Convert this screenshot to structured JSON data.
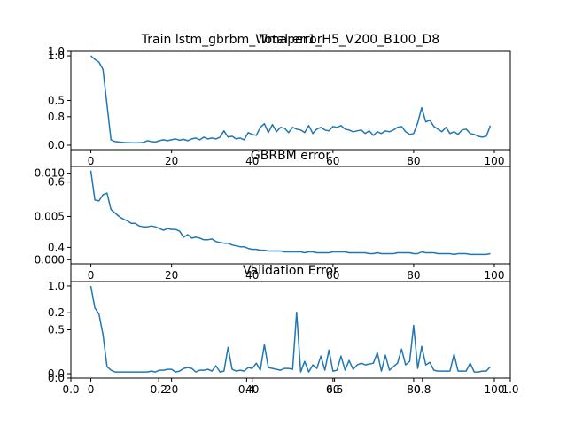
{
  "figure": {
    "suptitle": "Train lstm_gbrbm_Wmaper1_H5_V200_B100_D8",
    "overlay_title": "Total error",
    "overlay_x_ticks": [
      "0.0",
      "0.2",
      "0.4",
      "0.6",
      "0.8",
      "1.0"
    ],
    "overlay_y_ticks": [
      "0.0",
      "0.2",
      "0.4",
      "0.6",
      "0.8",
      "1.0"
    ]
  },
  "chart_data": [
    {
      "type": "line",
      "title": "",
      "color": "#1f77b4",
      "xlim": [
        -4.95,
        103.95
      ],
      "ylim": [
        -0.05,
        1.05
      ],
      "x_ticks": [
        0,
        20,
        40,
        60,
        80,
        100
      ],
      "y_ticks": [
        0.0,
        0.5,
        1.0
      ],
      "x": [
        0,
        1,
        2,
        3,
        4,
        5,
        6,
        7,
        8,
        9,
        10,
        11,
        12,
        13,
        14,
        15,
        16,
        17,
        18,
        19,
        20,
        21,
        22,
        23,
        24,
        25,
        26,
        27,
        28,
        29,
        30,
        31,
        32,
        33,
        34,
        35,
        36,
        37,
        38,
        39,
        40,
        41,
        42,
        43,
        44,
        45,
        46,
        47,
        48,
        49,
        50,
        51,
        52,
        53,
        54,
        55,
        56,
        57,
        58,
        59,
        60,
        61,
        62,
        63,
        64,
        65,
        66,
        67,
        68,
        69,
        70,
        71,
        72,
        73,
        74,
        75,
        76,
        77,
        78,
        79,
        80,
        81,
        82,
        83,
        84,
        85,
        86,
        87,
        88,
        89,
        90,
        91,
        92,
        93,
        94,
        95,
        96,
        97,
        98,
        99
      ],
      "values": [
        1.0,
        0.96,
        0.93,
        0.85,
        0.45,
        0.06,
        0.04,
        0.035,
        0.03,
        0.028,
        0.026,
        0.025,
        0.027,
        0.03,
        0.05,
        0.04,
        0.035,
        0.05,
        0.06,
        0.05,
        0.06,
        0.07,
        0.055,
        0.065,
        0.05,
        0.07,
        0.08,
        0.06,
        0.09,
        0.07,
        0.08,
        0.07,
        0.09,
        0.16,
        0.09,
        0.1,
        0.07,
        0.08,
        0.06,
        0.14,
        0.12,
        0.11,
        0.2,
        0.24,
        0.14,
        0.23,
        0.15,
        0.2,
        0.19,
        0.14,
        0.2,
        0.18,
        0.17,
        0.14,
        0.22,
        0.13,
        0.18,
        0.2,
        0.17,
        0.16,
        0.21,
        0.2,
        0.22,
        0.18,
        0.17,
        0.15,
        0.16,
        0.17,
        0.13,
        0.16,
        0.11,
        0.15,
        0.13,
        0.16,
        0.15,
        0.17,
        0.2,
        0.21,
        0.15,
        0.12,
        0.13,
        0.25,
        0.42,
        0.26,
        0.28,
        0.21,
        0.18,
        0.15,
        0.2,
        0.13,
        0.15,
        0.12,
        0.17,
        0.18,
        0.13,
        0.12,
        0.1,
        0.09,
        0.1,
        0.22
      ]
    },
    {
      "type": "line",
      "title": "GBRBM error",
      "color": "#1f77b4",
      "xlim": [
        -4.95,
        103.95
      ],
      "ylim": [
        -0.00048,
        0.01078
      ],
      "x_ticks": [
        0,
        20,
        40,
        60,
        80,
        100
      ],
      "y_ticks": [
        "0.000",
        "0.005",
        "0.010"
      ],
      "y_tick_values": [
        0.0,
        0.005,
        0.01
      ],
      "x": [
        0,
        1,
        2,
        3,
        4,
        5,
        6,
        7,
        8,
        9,
        10,
        11,
        12,
        13,
        14,
        15,
        16,
        17,
        18,
        19,
        20,
        21,
        22,
        23,
        24,
        25,
        26,
        27,
        28,
        29,
        30,
        31,
        32,
        33,
        34,
        35,
        36,
        37,
        38,
        39,
        40,
        41,
        42,
        43,
        44,
        45,
        46,
        47,
        48,
        49,
        50,
        51,
        52,
        53,
        54,
        55,
        56,
        57,
        58,
        59,
        60,
        61,
        62,
        63,
        64,
        65,
        66,
        67,
        68,
        69,
        70,
        71,
        72,
        73,
        74,
        75,
        76,
        77,
        78,
        79,
        80,
        81,
        82,
        83,
        84,
        85,
        86,
        87,
        88,
        89,
        90,
        91,
        92,
        93,
        94,
        95,
        96,
        97,
        98,
        99
      ],
      "values": [
        0.0103,
        0.0069,
        0.0068,
        0.0075,
        0.0077,
        0.0058,
        0.0054,
        0.005,
        0.0047,
        0.0045,
        0.0042,
        0.0042,
        0.0039,
        0.0038,
        0.0038,
        0.0039,
        0.0038,
        0.0036,
        0.0034,
        0.0036,
        0.0035,
        0.0035,
        0.0033,
        0.0026,
        0.0029,
        0.0025,
        0.0026,
        0.0025,
        0.0023,
        0.0023,
        0.0024,
        0.0021,
        0.002,
        0.0019,
        0.0019,
        0.0017,
        0.0016,
        0.0015,
        0.0015,
        0.0013,
        0.0012,
        0.0012,
        0.0011,
        0.0011,
        0.001,
        0.001,
        0.001,
        0.001,
        0.0009,
        0.0009,
        0.0009,
        0.0009,
        0.0009,
        0.0008,
        0.0009,
        0.0009,
        0.0008,
        0.0008,
        0.0008,
        0.0008,
        0.0009,
        0.0009,
        0.0009,
        0.0009,
        0.0008,
        0.0008,
        0.0008,
        0.0008,
        0.0008,
        0.0007,
        0.0007,
        0.0008,
        0.0007,
        0.0007,
        0.0007,
        0.0007,
        0.0008,
        0.0008,
        0.0008,
        0.0008,
        0.0007,
        0.0007,
        0.0009,
        0.0008,
        0.0008,
        0.0008,
        0.0007,
        0.0007,
        0.0007,
        0.0007,
        0.0006,
        0.0007,
        0.0007,
        0.0007,
        0.0006,
        0.0006,
        0.0006,
        0.0006,
        0.0006,
        0.0007
      ]
    },
    {
      "type": "line",
      "title": "Validation Error",
      "color": "#1f77b4",
      "xlim": [
        -4.95,
        103.95
      ],
      "ylim": [
        -0.05,
        1.05
      ],
      "x_ticks": [
        0,
        20,
        40,
        60,
        80,
        100
      ],
      "y_ticks": [
        0.0,
        0.5,
        1.0
      ],
      "x": [
        0,
        1,
        2,
        3,
        4,
        5,
        6,
        7,
        8,
        9,
        10,
        11,
        12,
        13,
        14,
        15,
        16,
        17,
        18,
        19,
        20,
        21,
        22,
        23,
        24,
        25,
        26,
        27,
        28,
        29,
        30,
        31,
        32,
        33,
        34,
        35,
        36,
        37,
        38,
        39,
        40,
        41,
        42,
        43,
        44,
        45,
        46,
        47,
        48,
        49,
        50,
        51,
        52,
        53,
        54,
        55,
        56,
        57,
        58,
        59,
        60,
        61,
        62,
        63,
        64,
        65,
        66,
        67,
        68,
        69,
        70,
        71,
        72,
        73,
        74,
        75,
        76,
        77,
        78,
        79,
        80,
        81,
        82,
        83,
        84,
        85,
        86,
        87,
        88,
        89,
        90,
        91,
        92,
        93,
        94,
        95,
        96,
        97,
        98,
        99
      ],
      "values": [
        1.0,
        0.75,
        0.68,
        0.45,
        0.08,
        0.04,
        0.02,
        0.02,
        0.02,
        0.02,
        0.02,
        0.02,
        0.02,
        0.02,
        0.02,
        0.03,
        0.02,
        0.04,
        0.04,
        0.05,
        0.05,
        0.02,
        0.03,
        0.06,
        0.07,
        0.06,
        0.02,
        0.04,
        0.04,
        0.05,
        0.03,
        0.09,
        0.02,
        0.03,
        0.3,
        0.05,
        0.03,
        0.04,
        0.03,
        0.07,
        0.06,
        0.12,
        0.04,
        0.33,
        0.07,
        0.06,
        0.05,
        0.04,
        0.06,
        0.06,
        0.05,
        0.7,
        0.02,
        0.14,
        0.02,
        0.1,
        0.06,
        0.2,
        0.04,
        0.27,
        0.03,
        0.04,
        0.2,
        0.04,
        0.15,
        0.05,
        0.1,
        0.12,
        0.1,
        0.11,
        0.12,
        0.24,
        0.03,
        0.21,
        0.04,
        0.08,
        0.12,
        0.28,
        0.1,
        0.14,
        0.55,
        0.06,
        0.31,
        0.1,
        0.13,
        0.04,
        0.03,
        0.03,
        0.03,
        0.03,
        0.22,
        0.03,
        0.03,
        0.03,
        0.12,
        0.02,
        0.02,
        0.03,
        0.03,
        0.08
      ]
    }
  ]
}
